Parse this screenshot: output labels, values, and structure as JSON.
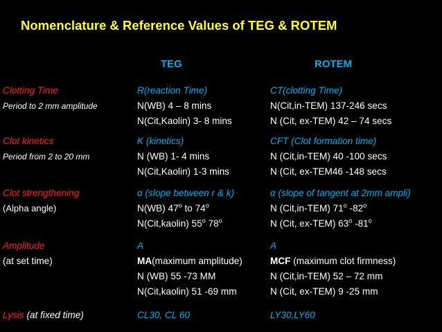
{
  "title": "Nomenclature & Reference Values of TEG & ROTEM",
  "headers": {
    "teg": "TEG",
    "rotem": "ROTEM"
  },
  "rows": [
    {
      "label": "Clotting Time",
      "sub": "Period to 2 mm amplitude",
      "teg": [
        "R(reaction Time)",
        "N(WB) 4 – 8 mins",
        "N(Cit,Kaolin) 3- 8 mins"
      ],
      "rotem": [
        "CT(clotting Time)",
        "N(Cit,in-TEM) 137-246 secs",
        "N (Cit, ex-TEM) 42 – 74 secs"
      ]
    },
    {
      "label": "Clot kinetics",
      "sub": "Period from 2 to 20 mm",
      "teg": [
        "K (kinetics)",
        "N (WB) 1- 4 mins",
        "N(Cit,Kaolin) 1-3 mins"
      ],
      "rotem": [
        "CFT (Clot formation time)",
        "N (Cit,in-TEM) 40 -100 secs",
        " N (Cit, ex-TEM46 -148 secs"
      ]
    },
    {
      "label": "Clot strengthening",
      "sub": "(Alpha angle)",
      "teg": {
        "head_symbol": "α",
        "head_rest": " (slope between r & k)",
        "l2_a": "N(WB) 47",
        "l2_b": " to 74",
        "l3_a": "N(Cit,kaolin) 55",
        "l3_b": " 78"
      },
      "rotem": {
        "head_symbol": "α",
        "head_rest": " (slope of tangent at 2mm ampli)",
        "l2_a": "N (Cit,in-TEM) 71",
        "l2_b": " -82",
        "l3_a": "N (Cit, ex-TEM) 63",
        "l3_b": " -81"
      },
      "degree": "o"
    },
    {
      "label": "Amplitude",
      "sub": "(at set time)",
      "teg": {
        "head": "A",
        "l2_bold": "MA",
        "l2_rest": "(maximum amplitude)",
        "l3": "N (WB) 55 -73 MM",
        "l4": " N(Cit,kaolin)  51 -69 mm"
      },
      "rotem": {
        "head": "A",
        "l2_bold": "MCF",
        "l2_rest": " (maximum clot firmness)",
        "l3": " N (Cit,in-TEM) 52 – 72 mm",
        "l4": " N (Cit, ex-TEM) 9 -25 mm"
      }
    },
    {
      "label": "Lysis",
      "label_rest": " (at fixed time)",
      "teg": "CL30, CL 60",
      "rotem": "LY30,LY60"
    }
  ],
  "colors": {
    "title": "#ffff33",
    "header": "#00b0f0",
    "label": "#ff2020",
    "text": "#ffffff",
    "bg": "#000000"
  }
}
